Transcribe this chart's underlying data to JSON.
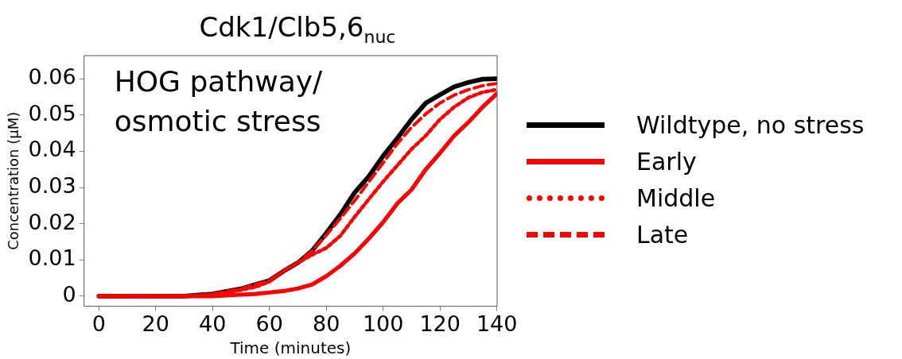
{
  "chart_data": {
    "type": "line",
    "title": "Cdk1/Clb5,6$_{nuc}$",
    "xlabel": "Time (minutes)",
    "ylabel": "Concentration (μM)",
    "annotations": [
      "HOG pathway/\nosmotic stress"
    ],
    "x": [
      0,
      30,
      40,
      50,
      55,
      60,
      65,
      70,
      75,
      80,
      85,
      90,
      95,
      100,
      105,
      110,
      115,
      120,
      125,
      130,
      135,
      140
    ],
    "series": [
      {
        "name": "Wildtype, no stress",
        "color": "#000000",
        "line_style": "solid",
        "values": [
          0,
          0,
          0.0006,
          0.002,
          0.0032,
          0.0043,
          0.0069,
          0.0092,
          0.0125,
          0.0174,
          0.0226,
          0.0286,
          0.0331,
          0.0387,
          0.0436,
          0.0488,
          0.0533,
          0.0556,
          0.0578,
          0.059,
          0.0599,
          0.06
        ]
      },
      {
        "name": "Early",
        "color": "#ff0000",
        "line_style": "solid",
        "values": [
          0,
          0,
          0,
          0.0004,
          0.0006,
          0.001,
          0.0014,
          0.0021,
          0.0032,
          0.0055,
          0.0084,
          0.0118,
          0.0159,
          0.0204,
          0.0256,
          0.0294,
          0.035,
          0.0395,
          0.0443,
          0.048,
          0.0522,
          0.0559
        ]
      },
      {
        "name": "Middle",
        "color": "#ff0000",
        "line_style": "dotted",
        "values": [
          0,
          0,
          0.0004,
          0.0017,
          0.0025,
          0.004,
          0.007,
          0.0092,
          0.0114,
          0.0133,
          0.0167,
          0.0219,
          0.0268,
          0.0316,
          0.0361,
          0.0406,
          0.0443,
          0.0488,
          0.0522,
          0.0548,
          0.0563,
          0.057
        ]
      },
      {
        "name": "Late",
        "color": "#ff0000",
        "line_style": "dashed",
        "values": [
          0,
          0,
          0.0006,
          0.002,
          0.0032,
          0.0043,
          0.0069,
          0.0092,
          0.0125,
          0.0168,
          0.0215,
          0.0264,
          0.0316,
          0.0368,
          0.0421,
          0.0466,
          0.0503,
          0.0533,
          0.0555,
          0.057,
          0.0581,
          0.0587
        ]
      }
    ],
    "xlim": [
      -5.2,
      140.1
    ],
    "xticks": [
      0,
      20,
      40,
      60,
      80,
      100,
      120,
      140
    ],
    "ylim": [
      -0.0028,
      0.0664
    ],
    "yticks": [
      0,
      0.01,
      0.02,
      0.03,
      0.04,
      0.05,
      0.06
    ],
    "grid": false,
    "legend": "right",
    "marker": "none"
  }
}
